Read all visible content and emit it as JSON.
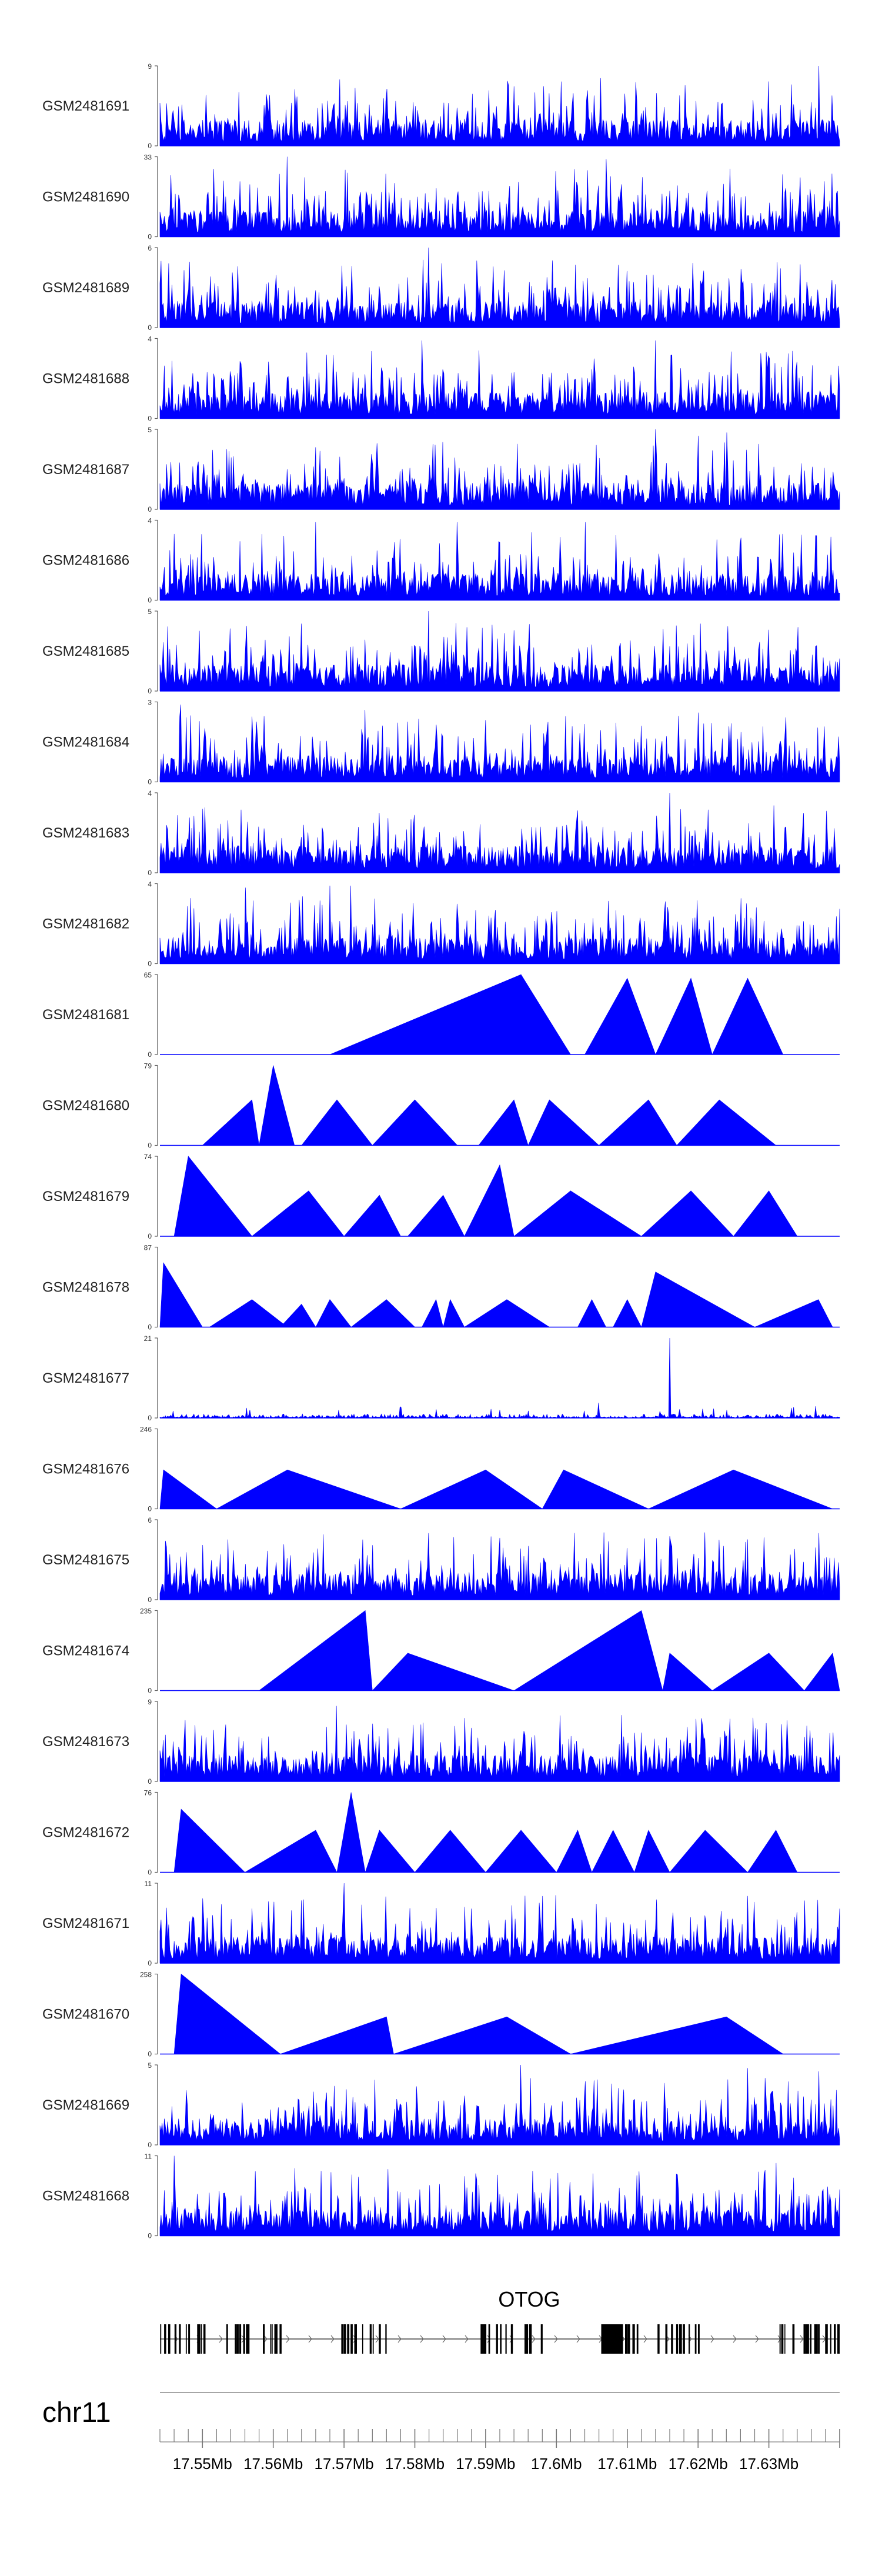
{
  "chart_data": {
    "type": "area",
    "title": "",
    "chromosome": "chr11",
    "genomic_range": [
      17544000,
      17640000
    ],
    "gene": {
      "name": "OTOG",
      "strand": "+"
    },
    "colors": {
      "fill": "#0000ff",
      "axis": "#555555",
      "text": "#222222"
    },
    "x_axis": {
      "ticks": [
        17550000,
        17560000,
        17570000,
        17580000,
        17590000,
        17600000,
        17610000,
        17620000,
        17630000
      ],
      "tick_labels": [
        "17.55Mb",
        "17.56Mb",
        "17.57Mb",
        "17.58Mb",
        "17.59Mb",
        "17.6Mb",
        "17.61Mb",
        "17.62Mb",
        "17.63Mb"
      ],
      "minor_step": 2000
    },
    "tracks": [
      {
        "name": "GSM2481691",
        "ymax": 9,
        "ylim": [
          0,
          9
        ],
        "style": "spiky",
        "peaks": [
          [
            17637000,
            9
          ],
          [
            17559000,
            5.8
          ],
          [
            17597000,
            6
          ]
        ]
      },
      {
        "name": "GSM2481690",
        "ymax": 33,
        "ylim": [
          0,
          33
        ],
        "style": "sparse",
        "peaks": [
          [
            17555000,
            11
          ],
          [
            17559000,
            10
          ],
          [
            17562000,
            33
          ],
          [
            17577000,
            9
          ],
          [
            17583000,
            20
          ],
          [
            17603000,
            21
          ],
          [
            17607000,
            32
          ],
          [
            17611000,
            13
          ]
        ]
      },
      {
        "name": "GSM2481689",
        "ymax": 6,
        "ylim": [
          0,
          6
        ],
        "style": "spiky",
        "peaks": [
          [
            17582000,
            6
          ],
          [
            17555000,
            4.6
          ],
          [
            17626000,
            4.4
          ]
        ]
      },
      {
        "name": "GSM2481688",
        "ymax": 4,
        "ylim": [
          0,
          4
        ],
        "style": "spiky",
        "peaks": [
          [
            17581000,
            3.9
          ],
          [
            17614000,
            3.9
          ],
          [
            17589000,
            3.4
          ]
        ]
      },
      {
        "name": "GSM2481687",
        "ymax": 5,
        "ylim": [
          0,
          5
        ],
        "style": "spiky",
        "peaks": [
          [
            17614000,
            5
          ],
          [
            17620000,
            4.6
          ],
          [
            17624000,
            4.8
          ]
        ]
      },
      {
        "name": "GSM2481686",
        "ymax": 4,
        "ylim": [
          0,
          4
        ],
        "style": "spiky",
        "peaks": [
          [
            17566000,
            3.9
          ],
          [
            17586000,
            3.9
          ],
          [
            17604000,
            3.9
          ]
        ]
      },
      {
        "name": "GSM2481685",
        "ymax": 5,
        "ylim": [
          0,
          5
        ],
        "style": "spiky",
        "peaks": [
          [
            17582000,
            5
          ],
          [
            17609000,
            3
          ],
          [
            17595000,
            2.4
          ]
        ]
      },
      {
        "name": "GSM2481684",
        "ymax": 3,
        "ylim": [
          0,
          3
        ],
        "style": "spiky",
        "peaks": [
          [
            17547000,
            2.9
          ],
          [
            17573000,
            2.7
          ],
          [
            17620000,
            2.6
          ]
        ]
      },
      {
        "name": "GSM2481683",
        "ymax": 4,
        "ylim": [
          0,
          4
        ],
        "style": "spiky",
        "peaks": [
          [
            17616000,
            4
          ],
          [
            17575000,
            3
          ],
          [
            17550000,
            3.2
          ]
        ]
      },
      {
        "name": "GSM2481682",
        "ymax": 4,
        "ylim": [
          0,
          4
        ],
        "style": "spiky",
        "peaks": [
          [
            17568000,
            3.9
          ],
          [
            17556000,
            3.8
          ],
          [
            17571000,
            3.9
          ]
        ]
      },
      {
        "name": "GSM2481681",
        "ymax": 65,
        "ylim": [
          0,
          65
        ],
        "style": "segments",
        "segments": [
          [
            17568000,
            17595000,
            17602000,
            65
          ],
          [
            17604000,
            17610000,
            17614000,
            62
          ],
          [
            17614000,
            17619000,
            17622000,
            62
          ],
          [
            17622000,
            17627000,
            17632000,
            62
          ]
        ]
      },
      {
        "name": "GSM2481680",
        "ymax": 79,
        "ylim": [
          0,
          79
        ],
        "style": "segments",
        "segments": [
          [
            17550000,
            17557000,
            17558000,
            45
          ],
          [
            17558000,
            17560000,
            17563000,
            79
          ],
          [
            17564000,
            17569000,
            17574000,
            45
          ],
          [
            17574000,
            17580000,
            17586000,
            45
          ],
          [
            17589000,
            17594000,
            17596000,
            45
          ],
          [
            17596000,
            17599000,
            17606000,
            45
          ],
          [
            17606000,
            17613000,
            17617000,
            45
          ],
          [
            17617000,
            17623000,
            17631000,
            45
          ]
        ]
      },
      {
        "name": "GSM2481679",
        "ymax": 74,
        "ylim": [
          0,
          74
        ],
        "style": "segments",
        "segments": [
          [
            17546000,
            17548000,
            17557000,
            74
          ],
          [
            17557000,
            17565000,
            17570000,
            42
          ],
          [
            17570000,
            17575000,
            17578000,
            38
          ],
          [
            17579000,
            17584000,
            17587000,
            38
          ],
          [
            17587000,
            17592000,
            17594000,
            66
          ],
          [
            17594000,
            17602000,
            17612000,
            42
          ],
          [
            17612000,
            17619000,
            17625000,
            42
          ],
          [
            17625000,
            17630000,
            17634000,
            42
          ]
        ]
      },
      {
        "name": "GSM2481678",
        "ymax": 87,
        "ylim": [
          0,
          87
        ],
        "style": "segments",
        "segments": [
          [
            17544000,
            17544500,
            17550000,
            70
          ],
          [
            17551000,
            17557000,
            17562000,
            30
          ],
          [
            17561000,
            17564000,
            17566000,
            25
          ],
          [
            17566000,
            17568000,
            17571000,
            30
          ],
          [
            17571000,
            17576000,
            17580000,
            30
          ],
          [
            17581000,
            17583000,
            17584000,
            30
          ],
          [
            17584000,
            17585000,
            17587000,
            30
          ],
          [
            17587000,
            17593000,
            17599000,
            30
          ],
          [
            17603000,
            17605000,
            17607000,
            30
          ],
          [
            17608000,
            17610000,
            17612000,
            30
          ],
          [
            17612000,
            17614000,
            17628000,
            60
          ],
          [
            17628000,
            17637000,
            17639000,
            30
          ]
        ]
      },
      {
        "name": "GSM2481677",
        "ymax": 21,
        "ylim": [
          0,
          21
        ],
        "style": "flat",
        "peaks": [
          [
            17616000,
            21
          ],
          [
            17606000,
            4
          ]
        ]
      },
      {
        "name": "GSM2481676",
        "ymax": 246,
        "ylim": [
          0,
          246
        ],
        "style": "segments",
        "segments": [
          [
            17544000,
            17544500,
            17552000,
            120
          ],
          [
            17552000,
            17562000,
            17578000,
            120
          ],
          [
            17578000,
            17590000,
            17598000,
            120
          ],
          [
            17598000,
            17601000,
            17613000,
            120
          ],
          [
            17613000,
            17625000,
            17639000,
            120
          ]
        ]
      },
      {
        "name": "GSM2481675",
        "ymax": 6,
        "ylim": [
          0,
          6
        ],
        "style": "spiky",
        "peaks": [
          [
            17567000,
            4.9
          ],
          [
            17637000,
            5
          ],
          [
            17623000,
            4.5
          ]
        ]
      },
      {
        "name": "GSM2481674",
        "ymax": 235,
        "ylim": [
          0,
          235
        ],
        "style": "segments",
        "segments": [
          [
            17558000,
            17573000,
            17574000,
            235
          ],
          [
            17574000,
            17579000,
            17594000,
            110
          ],
          [
            17594000,
            17612000,
            17615000,
            235
          ],
          [
            17615000,
            17616000,
            17622000,
            110
          ],
          [
            17622000,
            17630000,
            17635000,
            110
          ],
          [
            17635000,
            17639000,
            17640000,
            110
          ]
        ]
      },
      {
        "name": "GSM2481673",
        "ymax": 9,
        "ylim": [
          0,
          9
        ],
        "style": "spiky",
        "peaks": [
          [
            17569000,
            8.5
          ],
          [
            17574000,
            6.5
          ],
          [
            17639000,
            5.5
          ]
        ]
      },
      {
        "name": "GSM2481672",
        "ymax": 76,
        "ylim": [
          0,
          76
        ],
        "style": "segments",
        "segments": [
          [
            17546000,
            17547000,
            17556000,
            60
          ],
          [
            17556000,
            17566000,
            17569000,
            40
          ],
          [
            17569000,
            17571000,
            17573000,
            76
          ],
          [
            17573000,
            17575000,
            17580000,
            40
          ],
          [
            17580000,
            17585000,
            17590000,
            40
          ],
          [
            17590000,
            17595000,
            17600000,
            40
          ],
          [
            17600000,
            17603000,
            17605000,
            40
          ],
          [
            17605000,
            17608000,
            17611000,
            40
          ],
          [
            17611000,
            17613000,
            17616000,
            40
          ],
          [
            17616000,
            17621000,
            17627000,
            40
          ],
          [
            17627000,
            17631000,
            17634000,
            40
          ]
        ]
      },
      {
        "name": "GSM2481671",
        "ymax": 11,
        "ylim": [
          0,
          11
        ],
        "style": "spiky",
        "peaks": [
          [
            17570000,
            11
          ],
          [
            17588000,
            7.5
          ],
          [
            17640000,
            7.5
          ]
        ]
      },
      {
        "name": "GSM2481670",
        "ymax": 258,
        "ylim": [
          0,
          258
        ],
        "style": "segments",
        "segments": [
          [
            17546000,
            17547000,
            17561000,
            258
          ],
          [
            17561000,
            17576000,
            17577000,
            120
          ],
          [
            17577000,
            17593000,
            17602000,
            120
          ],
          [
            17602000,
            17624000,
            17632000,
            120
          ]
        ]
      },
      {
        "name": "GSM2481669",
        "ymax": 5,
        "ylim": [
          0,
          5
        ],
        "style": "spiky",
        "peaks": [
          [
            17595000,
            5
          ],
          [
            17627000,
            4.8
          ],
          [
            17637000,
            4.6
          ]
        ]
      },
      {
        "name": "GSM2481668",
        "ymax": 11,
        "ylim": [
          0,
          11
        ],
        "style": "spiky",
        "peaks": [
          [
            17546000,
            11
          ],
          [
            17631000,
            10
          ],
          [
            17617000,
            8.5
          ]
        ]
      }
    ]
  }
}
